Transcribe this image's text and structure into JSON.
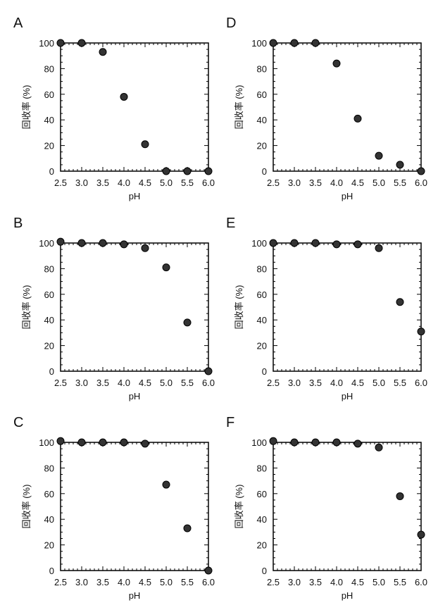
{
  "chart_data": [
    {
      "panel": "A",
      "type": "scatter",
      "xlabel": "pH",
      "ylabel": "回收率 (%)",
      "xlim": [
        2.5,
        6.0
      ],
      "ylim": [
        0,
        100
      ],
      "xticks": [
        "2.5",
        "3.0",
        "3.5",
        "4.0",
        "4.5",
        "5.0",
        "5.5",
        "6.0"
      ],
      "yticks": [
        "0",
        "20",
        "40",
        "60",
        "80",
        "100"
      ],
      "x": [
        2.5,
        3.0,
        3.5,
        4.0,
        4.5,
        5.0,
        5.5,
        6.0
      ],
      "y": [
        100,
        100,
        93,
        58,
        21,
        0,
        0,
        0
      ]
    },
    {
      "panel": "B",
      "type": "scatter",
      "xlabel": "pH",
      "ylabel": "回收率 (%)",
      "xlim": [
        2.5,
        6.0
      ],
      "ylim": [
        0,
        100
      ],
      "xticks": [
        "2.5",
        "3.0",
        "3.5",
        "4.0",
        "4.5",
        "5.0",
        "5.5",
        "6.0"
      ],
      "yticks": [
        "0",
        "20",
        "40",
        "60",
        "80",
        "100"
      ],
      "x": [
        2.5,
        3.0,
        3.5,
        4.0,
        4.5,
        5.0,
        5.5,
        6.0
      ],
      "y": [
        101,
        100,
        100,
        99,
        96,
        81,
        38,
        0
      ]
    },
    {
      "panel": "C",
      "type": "scatter",
      "xlabel": "pH",
      "ylabel": "回收率 (%)",
      "xlim": [
        2.5,
        6.0
      ],
      "ylim": [
        0,
        100
      ],
      "xticks": [
        "2.5",
        "3.0",
        "3.5",
        "4.0",
        "4.5",
        "5.0",
        "5.5",
        "6.0"
      ],
      "yticks": [
        "0",
        "20",
        "40",
        "60",
        "80",
        "100"
      ],
      "x": [
        2.5,
        3.0,
        3.5,
        4.0,
        4.5,
        5.0,
        5.5,
        6.0
      ],
      "y": [
        101,
        100,
        100,
        100,
        99,
        67,
        33,
        0
      ]
    },
    {
      "panel": "D",
      "type": "scatter",
      "xlabel": "pH",
      "ylabel": "回收率 (%)",
      "xlim": [
        2.5,
        6.0
      ],
      "ylim": [
        0,
        100
      ],
      "xticks": [
        "2.5",
        "3.0",
        "3.5",
        "4.0",
        "4.5",
        "5.0",
        "5.5",
        "6.0"
      ],
      "yticks": [
        "0",
        "20",
        "40",
        "60",
        "80",
        "100"
      ],
      "x": [
        2.5,
        3.0,
        3.5,
        4.0,
        4.5,
        5.0,
        5.5,
        6.0
      ],
      "y": [
        100,
        100,
        100,
        84,
        41,
        12,
        5,
        0
      ]
    },
    {
      "panel": "E",
      "type": "scatter",
      "xlabel": "pH",
      "ylabel": "回收率 (%)",
      "xlim": [
        2.5,
        6.0
      ],
      "ylim": [
        0,
        100
      ],
      "xticks": [
        "2.5",
        "3.0",
        "3.5",
        "4.0",
        "4.5",
        "5.0",
        "5.5",
        "6.0"
      ],
      "yticks": [
        "0",
        "20",
        "40",
        "60",
        "80",
        "100"
      ],
      "x": [
        2.5,
        3.0,
        3.5,
        4.0,
        4.5,
        5.0,
        5.5,
        6.0
      ],
      "y": [
        100,
        100,
        100,
        99,
        99,
        96,
        54,
        31
      ]
    },
    {
      "panel": "F",
      "type": "scatter",
      "xlabel": "pH",
      "ylabel": "回收率 (%)",
      "xlim": [
        2.5,
        6.0
      ],
      "ylim": [
        0,
        100
      ],
      "xticks": [
        "2.5",
        "3.0",
        "3.5",
        "4.0",
        "4.5",
        "5.0",
        "5.5",
        "6.0"
      ],
      "yticks": [
        "0",
        "20",
        "40",
        "60",
        "80",
        "100"
      ],
      "x": [
        2.5,
        3.0,
        3.5,
        4.0,
        4.5,
        5.0,
        5.5,
        6.0
      ],
      "y": [
        101,
        100,
        100,
        100,
        99,
        96,
        58,
        28
      ]
    }
  ],
  "style": {
    "marker_color": "#333333",
    "marker_edge": "#000000",
    "axis_color": "#000000"
  }
}
